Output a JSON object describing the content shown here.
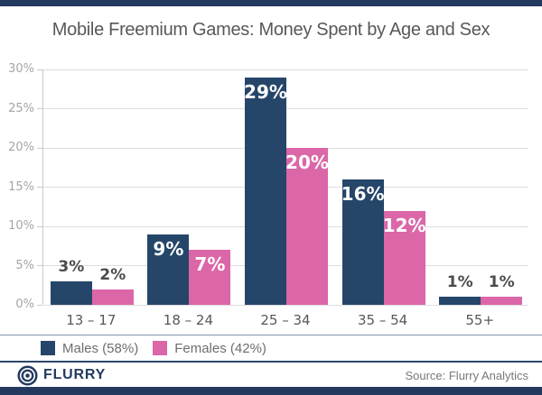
{
  "title": "Mobile Freemium Games: Money Spent by Age and Sex",
  "chart_data": {
    "type": "bar",
    "title": "Mobile Freemium Games: Money Spent by Age and Sex",
    "categories": [
      "13 – 17",
      "18 – 24",
      "25 – 34",
      "35 – 54",
      "55+"
    ],
    "series": [
      {
        "name": "Males (58%)",
        "color": "#254669",
        "values": [
          3,
          9,
          29,
          16,
          1
        ],
        "labels": [
          "3%",
          "9%",
          "29%",
          "16%",
          "1%"
        ]
      },
      {
        "name": "Females (42%)",
        "color": "#DB67A8",
        "values": [
          2,
          7,
          20,
          12,
          1
        ],
        "labels": [
          "2%",
          "7%",
          "20%",
          "12%",
          "1%"
        ]
      }
    ],
    "xlabel": "",
    "ylabel": "",
    "ylim": [
      0,
      30
    ],
    "y_ticks": [
      {
        "value": 30,
        "label": "30%"
      },
      {
        "value": 25,
        "label": "25%"
      },
      {
        "value": 20,
        "label": "20%"
      },
      {
        "value": 15,
        "label": "15%"
      },
      {
        "value": 10,
        "label": "10%"
      },
      {
        "value": 5,
        "label": "5%"
      },
      {
        "value": 0,
        "label": "0%"
      }
    ],
    "grid": true,
    "legend_position": "bottom",
    "value_label_inside_threshold": 5
  },
  "legend": {
    "items": [
      {
        "label": "Males (58%)",
        "color": "#254669"
      },
      {
        "label": "Females (42%)",
        "color": "#DB67A8"
      }
    ]
  },
  "footer": {
    "brand": "FLURRY",
    "source": "Source: Flurry Analytics"
  },
  "colors": {
    "accent_bar": "#24395E",
    "bar_male": "#254669",
    "bar_female": "#DB67A8",
    "gridline": "#DEDEDE",
    "axis_line": "#C9C9C9",
    "title_text": "#58585A",
    "tick_text": "#A5A5A5",
    "category_text": "#58585A",
    "outside_label_text": "#4B4B4D",
    "inside_label_text": "#FFFFFF",
    "legend_text": "#6D6E71",
    "separator_top": "#8294AD",
    "separator_bottom": "#2E4468",
    "brand_text": "#233A5E",
    "source_text": "#76787B"
  }
}
